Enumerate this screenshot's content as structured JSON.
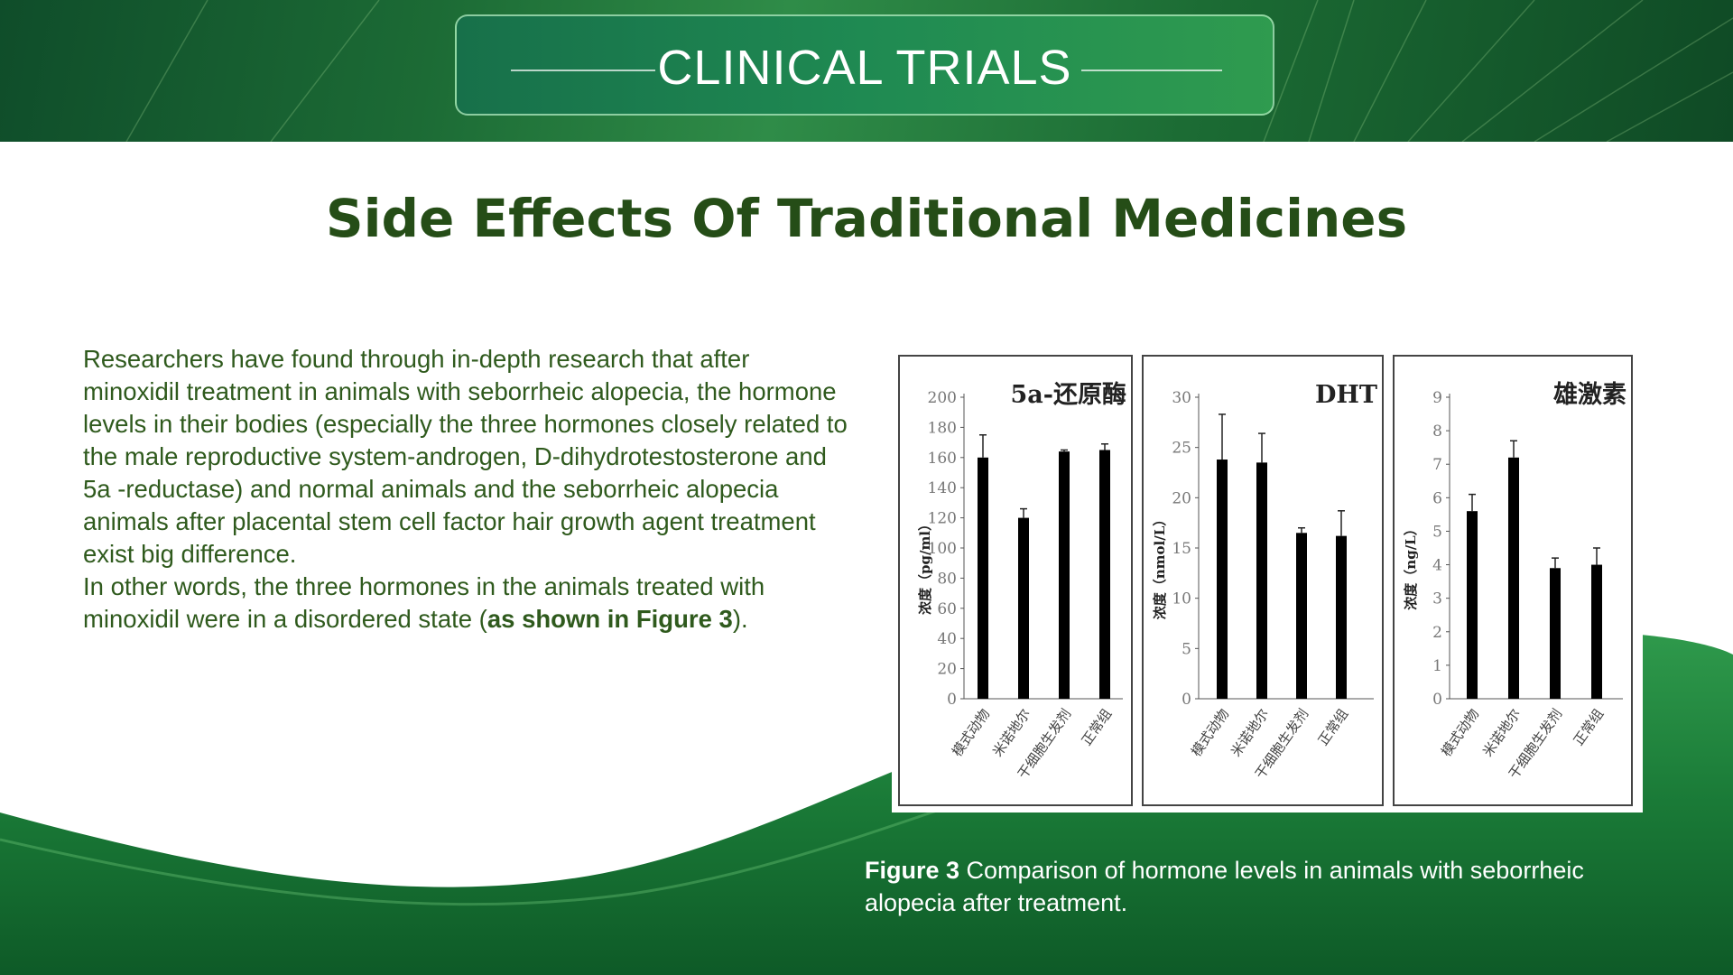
{
  "header": {
    "title": "CLINICAL TRIALS"
  },
  "page": {
    "heading": "Side Effects Of Traditional Medicines"
  },
  "body": {
    "paragraph1": "Researchers have found through in-depth research that after minoxidil treatment in animals with seborrheic alopecia, the hormone levels in their bodies (especially the three hormones closely related to the male reproductive system-androgen, D-dihydrotestosterone and 5a -reductase) and normal animals and the seborrheic alopecia animals after placental stem cell factor hair growth agent treatment exist big difference.",
    "paragraph2_prefix": "In other words, the three hormones in the animals treated with minoxidil were in a disordered state (",
    "paragraph2_bold": "as shown in Figure 3",
    "paragraph2_suffix": ")."
  },
  "figure": {
    "caption_bold": "Figure 3",
    "caption_text": " Comparison of hormone levels in animals with seborrheic alopecia after treatment."
  },
  "colors": {
    "brand_green": "#1f7a3c",
    "heading": "#254d17",
    "body_text": "#2f5a1d",
    "bar": "#000000"
  },
  "chart_data": [
    {
      "type": "bar",
      "title": "5a-还原酶",
      "ylabel": "浓度（pg/ml）",
      "ylim": [
        0,
        200
      ],
      "yticks": [
        0,
        20,
        40,
        60,
        80,
        100,
        120,
        140,
        160,
        180,
        200
      ],
      "categories": [
        "模式动物",
        "米诺地尔",
        "干细胞生发剂",
        "正常组"
      ],
      "values": [
        160,
        120,
        164,
        165
      ],
      "errors": [
        15,
        6,
        1,
        4
      ]
    },
    {
      "type": "bar",
      "title": "DHT",
      "ylabel": "浓度（nmol/L）",
      "ylim": [
        0,
        30
      ],
      "yticks": [
        0,
        5,
        10,
        15,
        20,
        25,
        30
      ],
      "categories": [
        "模式动物",
        "米诺地尔",
        "干细胞生发剂",
        "正常组"
      ],
      "values": [
        23.8,
        23.5,
        16.5,
        16.2
      ],
      "errors": [
        4.5,
        2.9,
        0.5,
        2.5
      ]
    },
    {
      "type": "bar",
      "title": "雄激素",
      "ylabel": "浓度（ng/L）",
      "ylim": [
        0,
        9
      ],
      "yticks": [
        0,
        1,
        2,
        3,
        4,
        5,
        6,
        7,
        8,
        9
      ],
      "categories": [
        "模式动物",
        "米诺地尔",
        "干细胞生发剂",
        "正常组"
      ],
      "values": [
        5.6,
        7.2,
        3.9,
        4.0
      ],
      "errors": [
        0.5,
        0.5,
        0.3,
        0.5
      ]
    }
  ]
}
